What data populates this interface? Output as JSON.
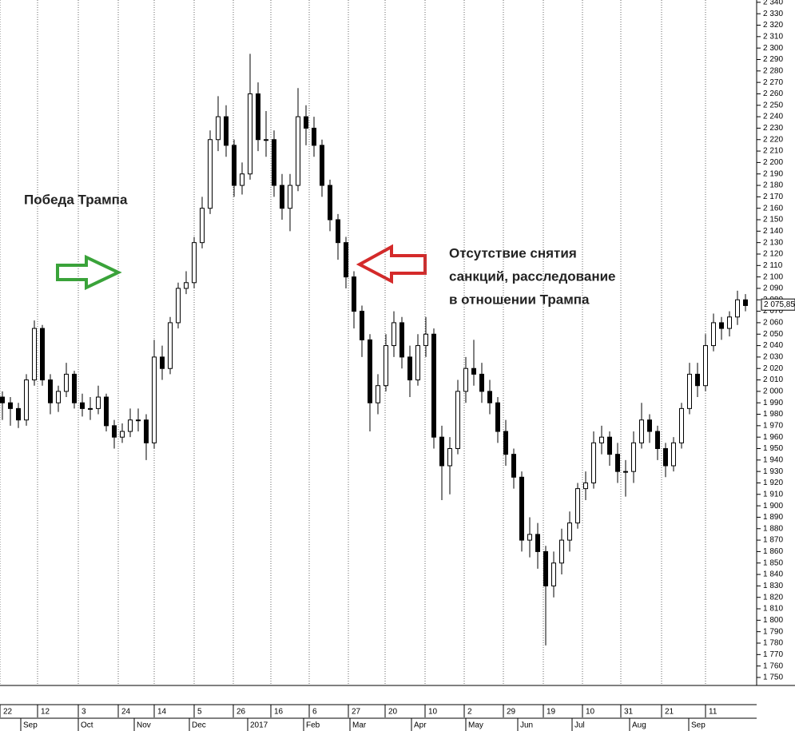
{
  "chart_data": {
    "type": "candlestick",
    "color": "#000000",
    "open": [
      1995,
      1990,
      1985,
      1975,
      2010,
      2055,
      2010,
      1990,
      2000,
      2015,
      1990,
      1985,
      1985,
      1995,
      1970,
      1960,
      1965,
      1975,
      1975,
      1955,
      2030,
      2020,
      2060,
      2090,
      2095,
      2130,
      2160,
      2220,
      2240,
      2215,
      2180,
      2190,
      2260,
      2220,
      2220,
      2180,
      2160,
      2180,
      2240,
      2230,
      2215,
      2180,
      2150,
      2130,
      2100,
      2070,
      2045,
      1990,
      2005,
      2040,
      2060,
      2030,
      2010,
      2040,
      2050,
      1960,
      1935,
      1950,
      2000,
      2020,
      2015,
      2000,
      1990,
      1965,
      1945,
      1925,
      1870,
      1875,
      1860,
      1830,
      1850,
      1870,
      1885,
      1915,
      1920,
      1955,
      1960,
      1945,
      1930,
      1930,
      1955,
      1975,
      1965,
      1950,
      1935,
      1955,
      1985,
      2015,
      2005,
      2040,
      2060,
      2055,
      2065,
      2080
    ],
    "high": [
      2000,
      1995,
      1990,
      2015,
      2062,
      2058,
      2015,
      2005,
      2025,
      2018,
      1998,
      1995,
      2005,
      1998,
      1975,
      1972,
      1985,
      1985,
      1980,
      2045,
      2040,
      2065,
      2095,
      2105,
      2135,
      2170,
      2228,
      2258,
      2250,
      2220,
      2200,
      2295,
      2270,
      2245,
      2228,
      2190,
      2190,
      2265,
      2250,
      2240,
      2220,
      2185,
      2155,
      2135,
      2105,
      2075,
      2050,
      2015,
      2050,
      2070,
      2065,
      2040,
      2050,
      2065,
      2055,
      1970,
      1960,
      2010,
      2030,
      2045,
      2025,
      2010,
      1995,
      1975,
      1950,
      1930,
      1890,
      1885,
      1865,
      1860,
      1880,
      1895,
      1920,
      1930,
      1965,
      1970,
      1965,
      1955,
      1940,
      1965,
      1990,
      1980,
      1970,
      1955,
      1960,
      1990,
      2025,
      2025,
      2050,
      2068,
      2065,
      2070,
      2088,
      2085
    ],
    "low": [
      1975,
      1970,
      1968,
      1970,
      2005,
      2005,
      1980,
      1982,
      1995,
      1985,
      1978,
      1975,
      1980,
      1965,
      1950,
      1955,
      1960,
      1965,
      1940,
      1950,
      2010,
      2015,
      2055,
      2085,
      2090,
      2125,
      2155,
      2210,
      2205,
      2170,
      2172,
      2185,
      2210,
      2205,
      2170,
      2150,
      2140,
      2175,
      2215,
      2205,
      2170,
      2140,
      2115,
      2090,
      2055,
      2030,
      1965,
      1980,
      2000,
      2030,
      2020,
      1995,
      2005,
      2030,
      1950,
      1905,
      1910,
      1945,
      1990,
      2005,
      1990,
      1980,
      1955,
      1935,
      1915,
      1860,
      1855,
      1845,
      1778,
      1820,
      1840,
      1860,
      1880,
      1905,
      1915,
      1945,
      1935,
      1920,
      1908,
      1920,
      1950,
      1955,
      1940,
      1925,
      1930,
      1950,
      1980,
      1995,
      2000,
      2035,
      2045,
      2048,
      2058,
      2070
    ],
    "close": [
      1990,
      1985,
      1975,
      2010,
      2055,
      2010,
      1990,
      2000,
      2015,
      1990,
      1985,
      1985,
      1995,
      1970,
      1960,
      1965,
      1975,
      1975,
      1955,
      2030,
      2020,
      2060,
      2090,
      2095,
      2130,
      2160,
      2220,
      2240,
      2215,
      2180,
      2190,
      2260,
      2220,
      2220,
      2180,
      2160,
      2180,
      2240,
      2230,
      2215,
      2180,
      2150,
      2130,
      2100,
      2070,
      2045,
      1990,
      2005,
      2040,
      2060,
      2030,
      2010,
      2040,
      2050,
      1960,
      1935,
      1950,
      2000,
      2020,
      2015,
      2000,
      1990,
      1965,
      1945,
      1925,
      1870,
      1875,
      1860,
      1830,
      1850,
      1870,
      1885,
      1915,
      1920,
      1955,
      1960,
      1945,
      1930,
      1930,
      1955,
      1975,
      1965,
      1950,
      1935,
      1955,
      1985,
      2015,
      2005,
      2040,
      2060,
      2055,
      2065,
      2080,
      2075
    ],
    "ylim": [
      1743,
      2342
    ],
    "yticks": [
      {
        "value": 1750,
        "label": "1 750"
      },
      {
        "value": 1760,
        "label": "1 760"
      },
      {
        "value": 1770,
        "label": "1 770"
      },
      {
        "value": 1780,
        "label": "1 780"
      },
      {
        "value": 1790,
        "label": "1 790"
      },
      {
        "value": 1800,
        "label": "1 800"
      },
      {
        "value": 1810,
        "label": "1 810"
      },
      {
        "value": 1820,
        "label": "1 820"
      },
      {
        "value": 1830,
        "label": "1 830"
      },
      {
        "value": 1840,
        "label": "1 840"
      },
      {
        "value": 1850,
        "label": "1 850"
      },
      {
        "value": 1860,
        "label": "1 860"
      },
      {
        "value": 1870,
        "label": "1 870"
      },
      {
        "value": 1880,
        "label": "1 880"
      },
      {
        "value": 1890,
        "label": "1 890"
      },
      {
        "value": 1900,
        "label": "1 900"
      },
      {
        "value": 1910,
        "label": "1 910"
      },
      {
        "value": 1920,
        "label": "1 920"
      },
      {
        "value": 1930,
        "label": "1 930"
      },
      {
        "value": 1940,
        "label": "1 940"
      },
      {
        "value": 1950,
        "label": "1 950"
      },
      {
        "value": 1960,
        "label": "1 960"
      },
      {
        "value": 1970,
        "label": "1 970"
      },
      {
        "value": 1980,
        "label": "1 980"
      },
      {
        "value": 1990,
        "label": "1 990"
      },
      {
        "value": 2000,
        "label": "2 000"
      },
      {
        "value": 2010,
        "label": "2 010"
      },
      {
        "value": 2020,
        "label": "2 020"
      },
      {
        "value": 2030,
        "label": "2 030"
      },
      {
        "value": 2040,
        "label": "2 040"
      },
      {
        "value": 2050,
        "label": "2 050"
      },
      {
        "value": 2060,
        "label": "2 060"
      },
      {
        "value": 2070,
        "label": "2 070"
      },
      {
        "value": 2080,
        "label": "2 080"
      },
      {
        "value": 2090,
        "label": "2 090"
      },
      {
        "value": 2100,
        "label": "2 100"
      },
      {
        "value": 2110,
        "label": "2 110"
      },
      {
        "value": 2120,
        "label": "2 120"
      },
      {
        "value": 2130,
        "label": "2 130"
      },
      {
        "value": 2140,
        "label": "2 140"
      },
      {
        "value": 2150,
        "label": "2 150"
      },
      {
        "value": 2160,
        "label": "2 160"
      },
      {
        "value": 2170,
        "label": "2 170"
      },
      {
        "value": 2180,
        "label": "2 180"
      },
      {
        "value": 2190,
        "label": "2 190"
      },
      {
        "value": 2200,
        "label": "2 200"
      },
      {
        "value": 2210,
        "label": "2 210"
      },
      {
        "value": 2220,
        "label": "2 220"
      },
      {
        "value": 2230,
        "label": "2 230"
      },
      {
        "value": 2240,
        "label": "2 240"
      },
      {
        "value": 2250,
        "label": "2 250"
      },
      {
        "value": 2260,
        "label": "2 260"
      },
      {
        "value": 2270,
        "label": "2 270"
      },
      {
        "value": 2280,
        "label": "2 280"
      },
      {
        "value": 2290,
        "label": "2 290"
      },
      {
        "value": 2300,
        "label": "2 300"
      },
      {
        "value": 2310,
        "label": "2 310"
      },
      {
        "value": 2320,
        "label": "2 320"
      },
      {
        "value": 2330,
        "label": "2 330"
      },
      {
        "value": 2340,
        "label": "2 340"
      }
    ],
    "xticks": [
      {
        "value": -0.3,
        "label": "22"
      },
      {
        "value": 4.4,
        "label": "12"
      },
      {
        "value": 9.5,
        "label": "3"
      },
      {
        "value": 14.5,
        "label": "24"
      },
      {
        "value": 19,
        "label": "14"
      },
      {
        "value": 24,
        "label": "5"
      },
      {
        "value": 28.9,
        "label": "26"
      },
      {
        "value": 33.6,
        "label": "16"
      },
      {
        "value": 38.4,
        "label": "6"
      },
      {
        "value": 43.3,
        "label": "27"
      },
      {
        "value": 47.9,
        "label": "20"
      },
      {
        "value": 52.9,
        "label": "10"
      },
      {
        "value": 57.8,
        "label": "2"
      },
      {
        "value": 62.7,
        "label": "29"
      },
      {
        "value": 67.7,
        "label": "19"
      },
      {
        "value": 72.6,
        "label": "10"
      },
      {
        "value": 77.4,
        "label": "31"
      },
      {
        "value": 82.5,
        "label": "21"
      },
      {
        "value": 88,
        "label": "11"
      }
    ],
    "month_ticks": [
      {
        "value": 2.3,
        "label": "Sep"
      },
      {
        "value": 9.5,
        "label": "Oct"
      },
      {
        "value": 16.5,
        "label": "Nov"
      },
      {
        "value": 23.4,
        "label": "Dec"
      },
      {
        "value": 30.7,
        "label": "2017"
      },
      {
        "value": 37.7,
        "label": "Feb"
      },
      {
        "value": 43.5,
        "label": "Mar"
      },
      {
        "value": 51.2,
        "label": "Apr"
      },
      {
        "value": 58,
        "label": "May"
      },
      {
        "value": 64.5,
        "label": "Jun"
      },
      {
        "value": 71.3,
        "label": "Jul"
      },
      {
        "value": 78.5,
        "label": "Aug"
      },
      {
        "value": 85.9,
        "label": "Sep"
      }
    ],
    "last_price": {
      "value": 2075.85,
      "label": "2 075,85"
    },
    "annotations": [
      {
        "text": "Победа Трампа"
      },
      {
        "lines": [
          "Отсутствие снятия",
          "санкций, расследование",
          "в отношении Трампа"
        ]
      }
    ]
  }
}
